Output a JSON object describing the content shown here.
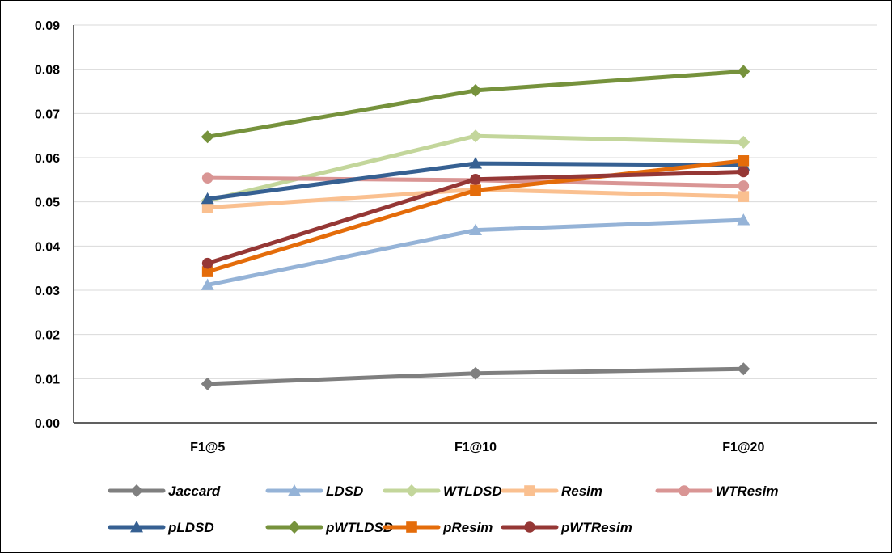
{
  "chart_data": {
    "type": "line",
    "title": "",
    "xlabel": "",
    "ylabel": "",
    "categories": [
      "F1@5",
      "F1@10",
      "F1@20"
    ],
    "ylim": [
      0,
      0.09
    ],
    "y_ticks": [
      "0.00",
      "0.01",
      "0.02",
      "0.03",
      "0.04",
      "0.05",
      "0.06",
      "0.07",
      "0.08",
      "0.09"
    ],
    "grid": true,
    "legend_position": "bottom",
    "series": [
      {
        "name": "Jaccard",
        "color": "#7f7f7f",
        "marker": "diamond",
        "values": [
          0.0088,
          0.0112,
          0.0122
        ]
      },
      {
        "name": "LDSD",
        "color": "#95b3d7",
        "marker": "triangle",
        "values": [
          0.0312,
          0.0436,
          0.0459
        ]
      },
      {
        "name": "WTLDSD",
        "color": "#c3d69b",
        "marker": "diamond",
        "values": [
          0.0503,
          0.0649,
          0.0635
        ]
      },
      {
        "name": "Resim",
        "color": "#fac090",
        "marker": "square",
        "values": [
          0.0487,
          0.0528,
          0.0512
        ]
      },
      {
        "name": "WTResim",
        "color": "#d99594",
        "marker": "circle",
        "values": [
          0.0554,
          0.0549,
          0.0536
        ]
      },
      {
        "name": "pLDSD",
        "color": "#366092",
        "marker": "triangle",
        "values": [
          0.0507,
          0.0587,
          0.0583
        ]
      },
      {
        "name": "pWTLDSD",
        "color": "#76923c",
        "marker": "diamond",
        "values": [
          0.0647,
          0.0752,
          0.0795
        ]
      },
      {
        "name": "pResim",
        "color": "#e46c0a",
        "marker": "square",
        "values": [
          0.0342,
          0.0526,
          0.0593
        ]
      },
      {
        "name": "pWTResim",
        "color": "#953735",
        "marker": "circle",
        "values": [
          0.0361,
          0.0551,
          0.0568
        ]
      }
    ]
  }
}
